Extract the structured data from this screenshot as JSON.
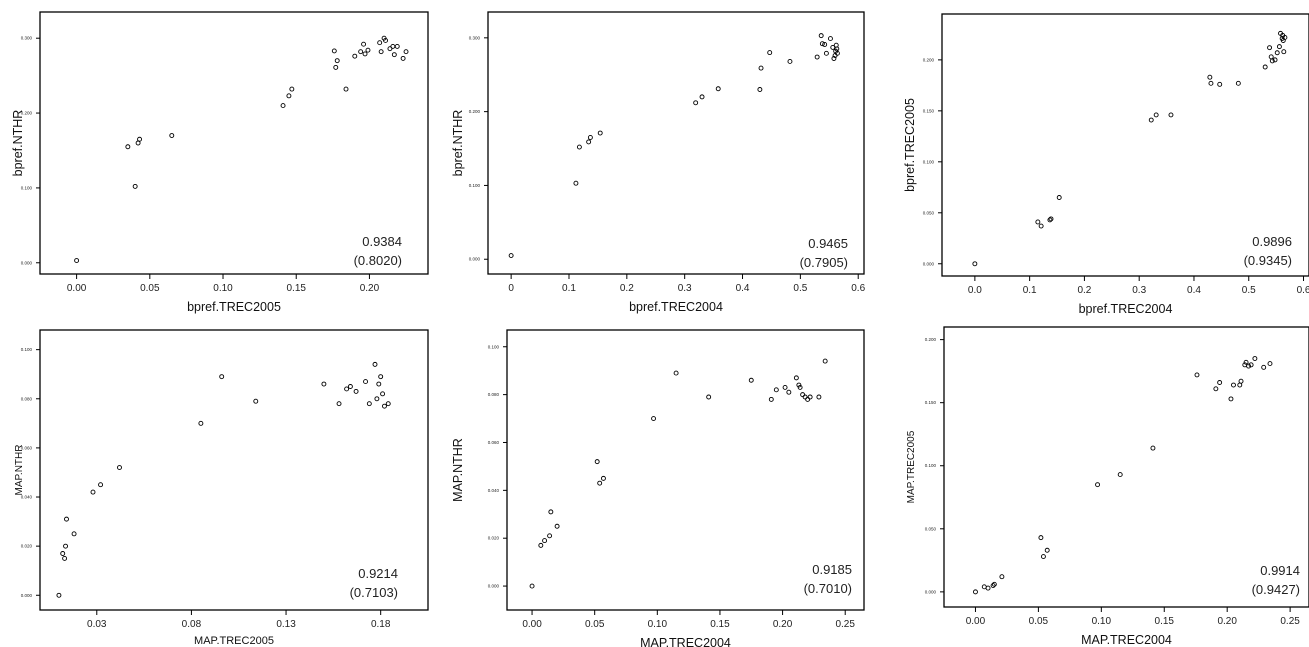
{
  "chart_data": [
    {
      "type": "scatter",
      "xlabel": "bpref.TREC2005",
      "ylabel": "bpref.NTHR",
      "xlim": [
        -0.025,
        0.24
      ],
      "ylim": [
        -0.015,
        0.335
      ],
      "xticks": [
        0.0,
        0.05,
        0.1,
        0.15,
        0.2
      ],
      "xtick_labels": [
        "0.00",
        "0.05",
        "0.10",
        "0.15",
        "0.20"
      ],
      "yticks": [
        0.0,
        0.1,
        0.2,
        0.3
      ],
      "ytick_labels": [
        "0.000",
        "0.100",
        "0.200",
        "0.300"
      ],
      "x": [
        0.0,
        0.035,
        0.04,
        0.042,
        0.043,
        0.065,
        0.141,
        0.145,
        0.147,
        0.176,
        0.177,
        0.178,
        0.184,
        0.19,
        0.194,
        0.196,
        0.197,
        0.199,
        0.207,
        0.208,
        0.21,
        0.211,
        0.214,
        0.216,
        0.217,
        0.219,
        0.223,
        0.225
      ],
      "y": [
        0.003,
        0.155,
        0.102,
        0.16,
        0.165,
        0.17,
        0.21,
        0.223,
        0.232,
        0.283,
        0.261,
        0.27,
        0.232,
        0.276,
        0.282,
        0.292,
        0.279,
        0.284,
        0.294,
        0.282,
        0.3,
        0.297,
        0.286,
        0.289,
        0.278,
        0.289,
        0.273,
        0.282
      ],
      "annotation": [
        "0.9384",
        "(0.8020)"
      ]
    },
    {
      "type": "scatter",
      "xlabel": "bpref.TREC2004",
      "ylabel": "bpref.NTHR",
      "xlim": [
        -0.04,
        0.61
      ],
      "ylim": [
        -0.02,
        0.335
      ],
      "xticks": [
        0.0,
        0.1,
        0.2,
        0.3,
        0.4,
        0.5,
        0.6
      ],
      "xtick_labels": [
        "0",
        "0.1",
        "0.2",
        "0.3",
        "0.4",
        "0.5",
        "0.6"
      ],
      "yticks": [
        0.0,
        0.1,
        0.2,
        0.3
      ],
      "ytick_labels": [
        "0.000",
        "0.100",
        "0.200",
        "0.300"
      ],
      "x": [
        0.0,
        0.112,
        0.118,
        0.134,
        0.137,
        0.154,
        0.319,
        0.33,
        0.358,
        0.43,
        0.432,
        0.447,
        0.482,
        0.529,
        0.536,
        0.538,
        0.542,
        0.545,
        0.552,
        0.556,
        0.558,
        0.56,
        0.561,
        0.562,
        0.563,
        0.564
      ],
      "y": [
        0.005,
        0.103,
        0.152,
        0.159,
        0.165,
        0.171,
        0.212,
        0.22,
        0.231,
        0.23,
        0.259,
        0.28,
        0.268,
        0.274,
        0.303,
        0.292,
        0.291,
        0.279,
        0.299,
        0.287,
        0.272,
        0.276,
        0.282,
        0.29,
        0.285,
        0.279
      ],
      "annotation": [
        "0.9465",
        "(0.7905)"
      ]
    },
    {
      "type": "scatter",
      "xlabel": "bpref.TREC2004",
      "ylabel": "bpref.TREC2005",
      "xlim": [
        -0.06,
        0.61
      ],
      "ylim": [
        -0.012,
        0.245
      ],
      "xticks": [
        0.0,
        0.1,
        0.2,
        0.3,
        0.4,
        0.5,
        0.6
      ],
      "xtick_labels": [
        "0.0",
        "0.1",
        "0.2",
        "0.3",
        "0.4",
        "0.5",
        "0.6"
      ],
      "yticks": [
        0.0,
        0.05,
        0.1,
        0.15,
        0.2
      ],
      "ytick_labels": [
        "0.000",
        "0.050",
        "0.100",
        "0.150",
        "0.200"
      ],
      "x": [
        0.0,
        0.115,
        0.121,
        0.137,
        0.139,
        0.154,
        0.322,
        0.331,
        0.358,
        0.429,
        0.431,
        0.447,
        0.481,
        0.53,
        0.538,
        0.541,
        0.543,
        0.548,
        0.552,
        0.556,
        0.558,
        0.561,
        0.562,
        0.563,
        0.564,
        0.566
      ],
      "y": [
        0.0,
        0.041,
        0.037,
        0.043,
        0.044,
        0.065,
        0.141,
        0.146,
        0.146,
        0.183,
        0.177,
        0.176,
        0.177,
        0.193,
        0.212,
        0.203,
        0.199,
        0.2,
        0.207,
        0.213,
        0.226,
        0.221,
        0.224,
        0.219,
        0.208,
        0.222
      ],
      "annotation": [
        "0.9896",
        "(0.9345)"
      ]
    },
    {
      "type": "scatter",
      "xlabel": "MAP.TREC2005",
      "ylabel": "MAP.NTHR",
      "xlim": [
        0.0,
        0.205
      ],
      "ylim": [
        -0.006,
        0.108
      ],
      "xticks": [
        0.03,
        0.08,
        0.13,
        0.18
      ],
      "xtick_labels": [
        "0.03",
        "0.08",
        "0.13",
        "0.18"
      ],
      "yticks": [
        0.0,
        0.02,
        0.04,
        0.06,
        0.08,
        0.1
      ],
      "ytick_labels": [
        "0.000",
        "0.020",
        "0.040",
        "0.060",
        "0.080",
        "0.100"
      ],
      "x": [
        0.01,
        0.012,
        0.013,
        0.0135,
        0.014,
        0.018,
        0.028,
        0.032,
        0.042,
        0.085,
        0.096,
        0.114,
        0.15,
        0.158,
        0.162,
        0.164,
        0.167,
        0.172,
        0.174,
        0.177,
        0.178,
        0.179,
        0.18,
        0.181,
        0.182,
        0.184
      ],
      "y": [
        0.0,
        0.017,
        0.015,
        0.02,
        0.031,
        0.025,
        0.042,
        0.045,
        0.052,
        0.07,
        0.089,
        0.079,
        0.086,
        0.078,
        0.084,
        0.085,
        0.083,
        0.087,
        0.078,
        0.094,
        0.08,
        0.086,
        0.089,
        0.082,
        0.077,
        0.078
      ],
      "annotation": [
        "0.9214",
        "(0.7103)"
      ]
    },
    {
      "type": "scatter",
      "xlabel": "MAP.TREC2004",
      "ylabel": "MAP.NTHR",
      "xlim": [
        -0.02,
        0.265
      ],
      "ylim": [
        -0.01,
        0.107
      ],
      "xticks": [
        0.0,
        0.05,
        0.1,
        0.15,
        0.2,
        0.25
      ],
      "xtick_labels": [
        "0.00",
        "0.05",
        "0.10",
        "0.15",
        "0.20",
        "0.25"
      ],
      "yticks": [
        0.0,
        0.02,
        0.04,
        0.06,
        0.08,
        0.1
      ],
      "ytick_labels": [
        "0.000",
        "0.020",
        "0.040",
        "0.060",
        "0.080",
        "0.100"
      ],
      "x": [
        0.0,
        0.007,
        0.01,
        0.014,
        0.015,
        0.02,
        0.052,
        0.054,
        0.057,
        0.097,
        0.115,
        0.141,
        0.175,
        0.191,
        0.195,
        0.202,
        0.205,
        0.211,
        0.213,
        0.214,
        0.216,
        0.218,
        0.22,
        0.222,
        0.229,
        0.234
      ],
      "y": [
        0.0,
        0.017,
        0.019,
        0.021,
        0.031,
        0.025,
        0.052,
        0.043,
        0.045,
        0.07,
        0.089,
        0.079,
        0.086,
        0.078,
        0.082,
        0.083,
        0.081,
        0.087,
        0.084,
        0.083,
        0.08,
        0.079,
        0.078,
        0.079,
        0.079,
        0.094
      ],
      "annotation": [
        "0.9185",
        "(0.7010)"
      ]
    },
    {
      "type": "scatter",
      "xlabel": "MAP.TREC2004",
      "ylabel": "MAP.TREC2005",
      "xlim": [
        -0.025,
        0.265
      ],
      "ylim": [
        -0.012,
        0.21
      ],
      "xticks": [
        0.0,
        0.05,
        0.1,
        0.15,
        0.2,
        0.25
      ],
      "xtick_labels": [
        "0.00",
        "0.05",
        "0.10",
        "0.15",
        "0.20",
        "0.25"
      ],
      "yticks": [
        0.0,
        0.05,
        0.1,
        0.15,
        0.2
      ],
      "ytick_labels": [
        "0.000",
        "0.050",
        "0.100",
        "0.150",
        "0.200"
      ],
      "x": [
        0.0,
        0.007,
        0.01,
        0.014,
        0.015,
        0.021,
        0.052,
        0.054,
        0.057,
        0.097,
        0.115,
        0.141,
        0.176,
        0.191,
        0.194,
        0.203,
        0.205,
        0.21,
        0.211,
        0.214,
        0.215,
        0.217,
        0.219,
        0.222,
        0.229,
        0.234
      ],
      "y": [
        0.0,
        0.004,
        0.003,
        0.005,
        0.006,
        0.012,
        0.043,
        0.028,
        0.033,
        0.085,
        0.093,
        0.114,
        0.172,
        0.161,
        0.166,
        0.153,
        0.164,
        0.164,
        0.167,
        0.18,
        0.182,
        0.179,
        0.18,
        0.185,
        0.178,
        0.181
      ],
      "annotation": [
        "0.9914",
        "(0.9427)"
      ]
    }
  ]
}
